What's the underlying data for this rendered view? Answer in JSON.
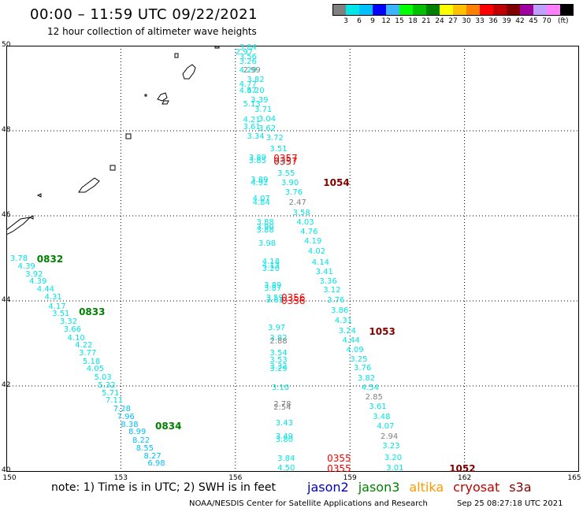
{
  "header": {
    "title": "00:00 – 11:59 UTC 09/22/2021",
    "subtitle": "12 hour collection of altimeter wave heights"
  },
  "colorbar": {
    "colors": [
      "#808080",
      "#00e5e5",
      "#00c0ff",
      "#0000ff",
      "#3cb4ff",
      "#00ff00",
      "#00c000",
      "#008000",
      "#ffff00",
      "#ffc000",
      "#ff8000",
      "#ff0000",
      "#c00000",
      "#800000",
      "#a000a0",
      "#c0a0ff",
      "#ff80ff",
      "#000000"
    ],
    "labels": [
      "3",
      "6",
      "9",
      "12",
      "15",
      "18",
      "21",
      "24",
      "27",
      "30",
      "33",
      "36",
      "39",
      "42",
      "45",
      "70"
    ],
    "unit": "(ft)"
  },
  "axes": {
    "lat_labels": [
      "50",
      "48",
      "46",
      "44",
      "42",
      "40"
    ],
    "lon_labels": [
      "150",
      "153",
      "156",
      "159",
      "162",
      "165"
    ]
  },
  "points": [
    {
      "v": "3.84",
      "c": "#00e5e5",
      "lon": 156.1,
      "lat": 49.95
    },
    {
      "v": "2.97",
      "c": "#00e5e5",
      "lon": 156.0,
      "lat": 49.84
    },
    {
      "v": "3.56",
      "c": "#00e5e5",
      "lon": 156.1,
      "lat": 49.72
    },
    {
      "v": "3.26",
      "c": "#00e5e5",
      "lon": 156.1,
      "lat": 49.62
    },
    {
      "v": "4.29",
      "c": "#00e5e5",
      "lon": 156.1,
      "lat": 49.4
    },
    {
      "v": "2.99",
      "c": "#808080",
      "lon": 156.2,
      "lat": 49.4
    },
    {
      "v": "3.82",
      "c": "#00e5e5",
      "lon": 156.3,
      "lat": 49.18
    },
    {
      "v": "4.77",
      "c": "#00e5e5",
      "lon": 156.1,
      "lat": 49.08
    },
    {
      "v": "4.57",
      "c": "#00e5e5",
      "lon": 156.1,
      "lat": 48.92
    },
    {
      "v": "4.20",
      "c": "#00e5e5",
      "lon": 156.3,
      "lat": 48.92
    },
    {
      "v": "3.39",
      "c": "#00e5e5",
      "lon": 156.4,
      "lat": 48.7
    },
    {
      "v": "5.13",
      "c": "#00e5e5",
      "lon": 156.2,
      "lat": 48.62
    },
    {
      "v": "3.71",
      "c": "#00e5e5",
      "lon": 156.5,
      "lat": 48.48
    },
    {
      "v": "4.21",
      "c": "#00e5e5",
      "lon": 156.2,
      "lat": 48.24
    },
    {
      "v": "3.04",
      "c": "#00e5e5",
      "lon": 156.6,
      "lat": 48.26
    },
    {
      "v": "3.61",
      "c": "#00e5e5",
      "lon": 156.2,
      "lat": 48.08
    },
    {
      "v": "3.62",
      "c": "#00e5e5",
      "lon": 156.6,
      "lat": 48.04
    },
    {
      "v": "3.34",
      "c": "#00e5e5",
      "lon": 156.3,
      "lat": 47.86
    },
    {
      "v": "3.72",
      "c": "#00e5e5",
      "lon": 156.8,
      "lat": 47.82
    },
    {
      "v": "3.51",
      "c": "#00e5e5",
      "lon": 156.9,
      "lat": 47.55
    },
    {
      "v": "3.89",
      "c": "#00e5e5",
      "lon": 156.35,
      "lat": 47.36
    },
    {
      "v": "3.85",
      "c": "#00e5e5",
      "lon": 156.35,
      "lat": 47.28
    },
    {
      "v": "3.57",
      "c": "#00e5e5",
      "lon": 157.0,
      "lat": 47.28
    },
    {
      "v": "3.55",
      "c": "#00e5e5",
      "lon": 157.1,
      "lat": 46.98
    },
    {
      "v": "3.89",
      "c": "#00e5e5",
      "lon": 156.4,
      "lat": 46.84
    },
    {
      "v": "4.92",
      "c": "#00e5e5",
      "lon": 156.4,
      "lat": 46.76
    },
    {
      "v": "3.90",
      "c": "#00e5e5",
      "lon": 157.2,
      "lat": 46.76
    },
    {
      "v": "3.76",
      "c": "#00e5e5",
      "lon": 157.3,
      "lat": 46.54
    },
    {
      "v": "4.07",
      "c": "#00e5e5",
      "lon": 156.45,
      "lat": 46.38
    },
    {
      "v": "4.84",
      "c": "#00e5e5",
      "lon": 156.45,
      "lat": 46.3
    },
    {
      "v": "2.47",
      "c": "#808080",
      "lon": 157.4,
      "lat": 46.3
    },
    {
      "v": "3.58",
      "c": "#00e5e5",
      "lon": 157.5,
      "lat": 46.06
    },
    {
      "v": "3.88",
      "c": "#00e5e5",
      "lon": 156.55,
      "lat": 45.84
    },
    {
      "v": "4.03",
      "c": "#00e5e5",
      "lon": 157.6,
      "lat": 45.84
    },
    {
      "v": "3.90",
      "c": "#00e5e5",
      "lon": 156.55,
      "lat": 45.72
    },
    {
      "v": "3.88",
      "c": "#00e5e5",
      "lon": 156.55,
      "lat": 45.64
    },
    {
      "v": "4.76",
      "c": "#00e5e5",
      "lon": 157.7,
      "lat": 45.62
    },
    {
      "v": "3.98",
      "c": "#00e5e5",
      "lon": 156.6,
      "lat": 45.34
    },
    {
      "v": "4.19",
      "c": "#00e5e5",
      "lon": 157.8,
      "lat": 45.38
    },
    {
      "v": "4.02",
      "c": "#00e5e5",
      "lon": 157.9,
      "lat": 45.14
    },
    {
      "v": "4.18",
      "c": "#00e5e5",
      "lon": 156.7,
      "lat": 44.9
    },
    {
      "v": "4.13",
      "c": "#00e5e5",
      "lon": 156.7,
      "lat": 44.82
    },
    {
      "v": "4.14",
      "c": "#00e5e5",
      "lon": 158.0,
      "lat": 44.88
    },
    {
      "v": "3.20",
      "c": "#00e5e5",
      "lon": 156.7,
      "lat": 44.74
    },
    {
      "v": "3.41",
      "c": "#00e5e5",
      "lon": 158.1,
      "lat": 44.66
    },
    {
      "v": "3.36",
      "c": "#00e5e5",
      "lon": 158.2,
      "lat": 44.44
    },
    {
      "v": "3.89",
      "c": "#00e5e5",
      "lon": 156.75,
      "lat": 44.36
    },
    {
      "v": "3.87",
      "c": "#00e5e5",
      "lon": 156.75,
      "lat": 44.28
    },
    {
      "v": "3.12",
      "c": "#00e5e5",
      "lon": 158.3,
      "lat": 44.24
    },
    {
      "v": "3.59",
      "c": "#00e5e5",
      "lon": 156.8,
      "lat": 44.06
    },
    {
      "v": "3.61",
      "c": "#00e5e5",
      "lon": 156.8,
      "lat": 44.0
    },
    {
      "v": "3.76",
      "c": "#00e5e5",
      "lon": 158.4,
      "lat": 44.0
    },
    {
      "v": "3.86",
      "c": "#00e5e5",
      "lon": 158.5,
      "lat": 43.76
    },
    {
      "v": "4.31",
      "c": "#00e5e5",
      "lon": 158.6,
      "lat": 43.52
    },
    {
      "v": "3.97",
      "c": "#00e5e5",
      "lon": 156.85,
      "lat": 43.36
    },
    {
      "v": "3.24",
      "c": "#00e5e5",
      "lon": 158.7,
      "lat": 43.28
    },
    {
      "v": "3.82",
      "c": "#00e5e5",
      "lon": 156.9,
      "lat": 43.12
    },
    {
      "v": "2.88",
      "c": "#808080",
      "lon": 156.9,
      "lat": 43.04
    },
    {
      "v": "4.44",
      "c": "#00e5e5",
      "lon": 158.8,
      "lat": 43.06
    },
    {
      "v": "4.09",
      "c": "#00e5e5",
      "lon": 158.9,
      "lat": 42.84
    },
    {
      "v": "3.54",
      "c": "#00e5e5",
      "lon": 156.9,
      "lat": 42.76
    },
    {
      "v": "3.53",
      "c": "#00e5e5",
      "lon": 156.9,
      "lat": 42.6
    },
    {
      "v": "3.25",
      "c": "#00e5e5",
      "lon": 159.0,
      "lat": 42.62
    },
    {
      "v": "3.32",
      "c": "#00e5e5",
      "lon": 156.9,
      "lat": 42.44
    },
    {
      "v": "3.29",
      "c": "#00e5e5",
      "lon": 156.9,
      "lat": 42.38
    },
    {
      "v": "3.76",
      "c": "#00e5e5",
      "lon": 159.1,
      "lat": 42.4
    },
    {
      "v": "3.82",
      "c": "#00e5e5",
      "lon": 159.2,
      "lat": 42.16
    },
    {
      "v": "3.10",
      "c": "#00e5e5",
      "lon": 156.95,
      "lat": 41.94
    },
    {
      "v": "4.54",
      "c": "#00e5e5",
      "lon": 159.3,
      "lat": 41.94
    },
    {
      "v": "2.85",
      "c": "#808080",
      "lon": 159.4,
      "lat": 41.72
    },
    {
      "v": "2.78",
      "c": "#808080",
      "lon": 157.0,
      "lat": 41.56
    },
    {
      "v": "2.54",
      "c": "#808080",
      "lon": 157.0,
      "lat": 41.48
    },
    {
      "v": "3.61",
      "c": "#00e5e5",
      "lon": 159.5,
      "lat": 41.5
    },
    {
      "v": "3.48",
      "c": "#00e5e5",
      "lon": 159.6,
      "lat": 41.26
    },
    {
      "v": "3.43",
      "c": "#00e5e5",
      "lon": 157.05,
      "lat": 41.12
    },
    {
      "v": "4.07",
      "c": "#00e5e5",
      "lon": 159.7,
      "lat": 41.04
    },
    {
      "v": "3.49",
      "c": "#00e5e5",
      "lon": 157.05,
      "lat": 40.8
    },
    {
      "v": "2.94",
      "c": "#808080",
      "lon": 159.8,
      "lat": 40.8
    },
    {
      "v": "3.80",
      "c": "#00e5e5",
      "lon": 157.05,
      "lat": 40.72
    },
    {
      "v": "3.23",
      "c": "#00e5e5",
      "lon": 159.85,
      "lat": 40.58
    },
    {
      "v": "3.84",
      "c": "#00e5e5",
      "lon": 157.1,
      "lat": 40.28
    },
    {
      "v": "3.20",
      "c": "#00e5e5",
      "lon": 159.9,
      "lat": 40.3
    },
    {
      "v": "4.50",
      "c": "#00e5e5",
      "lon": 157.1,
      "lat": 40.06
    },
    {
      "v": "3.01",
      "c": "#00e5e5",
      "lon": 159.95,
      "lat": 40.06
    },
    {
      "v": "3.78",
      "c": "#00e5e5",
      "lon": 150.1,
      "lat": 44.98
    },
    {
      "v": "4.39",
      "c": "#00e5e5",
      "lon": 150.3,
      "lat": 44.8
    },
    {
      "v": "3.92",
      "c": "#00e5e5",
      "lon": 150.5,
      "lat": 44.62
    },
    {
      "v": "4.39",
      "c": "#00e5e5",
      "lon": 150.6,
      "lat": 44.44
    },
    {
      "v": "4.44",
      "c": "#00e5e5",
      "lon": 150.8,
      "lat": 44.26
    },
    {
      "v": "4.31",
      "c": "#00e5e5",
      "lon": 151.0,
      "lat": 44.08
    },
    {
      "v": "4.17",
      "c": "#00e5e5",
      "lon": 151.1,
      "lat": 43.86
    },
    {
      "v": "3.51",
      "c": "#00e5e5",
      "lon": 151.2,
      "lat": 43.68
    },
    {
      "v": "3.32",
      "c": "#00e5e5",
      "lon": 151.4,
      "lat": 43.5
    },
    {
      "v": "3.66",
      "c": "#00e5e5",
      "lon": 151.5,
      "lat": 43.32
    },
    {
      "v": "4.10",
      "c": "#00e5e5",
      "lon": 151.6,
      "lat": 43.12
    },
    {
      "v": "4.22",
      "c": "#00e5e5",
      "lon": 151.8,
      "lat": 42.94
    },
    {
      "v": "3.77",
      "c": "#00e5e5",
      "lon": 151.9,
      "lat": 42.76
    },
    {
      "v": "5.18",
      "c": "#00e5e5",
      "lon": 152.0,
      "lat": 42.56
    },
    {
      "v": "4.05",
      "c": "#00e5e5",
      "lon": 152.1,
      "lat": 42.38
    },
    {
      "v": "5.03",
      "c": "#00e5e5",
      "lon": 152.3,
      "lat": 42.18
    },
    {
      "v": "5.32",
      "c": "#00e5e5",
      "lon": 152.4,
      "lat": 42.0
    },
    {
      "v": "5.71",
      "c": "#00e5e5",
      "lon": 152.5,
      "lat": 41.82
    },
    {
      "v": "7.11",
      "c": "#00e5e5",
      "lon": 152.6,
      "lat": 41.64
    },
    {
      "v": "7.28",
      "c": "#00c0ff",
      "lon": 152.8,
      "lat": 41.44
    },
    {
      "v": "7.96",
      "c": "#00c0ff",
      "lon": 152.9,
      "lat": 41.26
    },
    {
      "v": "8.38",
      "c": "#00c0ff",
      "lon": 153.0,
      "lat": 41.08
    },
    {
      "v": "8.99",
      "c": "#00c0ff",
      "lon": 153.2,
      "lat": 40.9
    },
    {
      "v": "8.22",
      "c": "#00c0ff",
      "lon": 153.3,
      "lat": 40.7
    },
    {
      "v": "8.55",
      "c": "#00c0ff",
      "lon": 153.4,
      "lat": 40.52
    },
    {
      "v": "8.27",
      "c": "#00c0ff",
      "lon": 153.6,
      "lat": 40.34
    },
    {
      "v": "6.98",
      "c": "#00c0ff",
      "lon": 153.7,
      "lat": 40.16
    }
  ],
  "overlap_points": [
    {
      "v": "0357",
      "c": "#ff0000",
      "lon": 157.0,
      "lat": 47.36
    },
    {
      "v": "0357",
      "c": "#ff0000",
      "lon": 157.0,
      "lat": 47.28
    },
    {
      "v": "0356",
      "c": "#ff0000",
      "lon": 157.2,
      "lat": 44.08
    },
    {
      "v": "0356",
      "c": "#ff0000",
      "lon": 157.2,
      "lat": 44.0
    },
    {
      "v": "0355",
      "c": "#ff0000",
      "lon": 158.4,
      "lat": 40.3
    },
    {
      "v": "0355",
      "c": "#ff0000",
      "lon": 158.4,
      "lat": 40.06
    }
  ],
  "time_labels": [
    {
      "v": "1054",
      "c": "#800000",
      "lon": 158.3,
      "lat": 46.78
    },
    {
      "v": "1053",
      "c": "#800000",
      "lon": 159.5,
      "lat": 43.28
    },
    {
      "v": "1052",
      "c": "#800000",
      "lon": 161.6,
      "lat": 40.06
    },
    {
      "v": "0832",
      "c": "#008000",
      "lon": 150.8,
      "lat": 44.98
    },
    {
      "v": "0833",
      "c": "#008000",
      "lon": 151.9,
      "lat": 43.74
    },
    {
      "v": "0834",
      "c": "#008000",
      "lon": 153.9,
      "lat": 41.06
    }
  ],
  "footer": {
    "note": "note:  1) Time is in UTC; 2) SWH is in feet",
    "legend": [
      {
        "name": "jason2",
        "color": "#0000c0"
      },
      {
        "name": "jason3",
        "color": "#008000"
      },
      {
        "name": "altika",
        "color": "#ff9900"
      },
      {
        "name": "cryosat",
        "color": "#c00000"
      },
      {
        "name": "s3a",
        "color": "#800000"
      }
    ],
    "credit": "NOAA/NESDIS Center for Satellite Applications and Research",
    "timestamp": "Sep 25 08:27:18 UTC 2021"
  }
}
